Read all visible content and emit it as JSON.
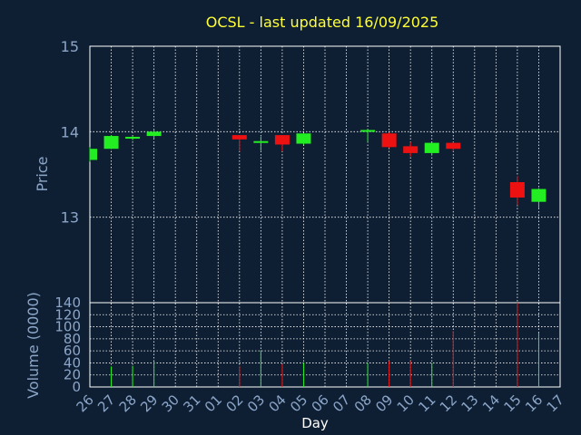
{
  "chart_data": {
    "type": "candlestick",
    "title": "OCSL - last updated 16/09/2025",
    "xlabel": "Day",
    "price_panel": {
      "ylabel": "Price",
      "ylim": [
        12,
        15
      ],
      "yticks": [
        "13",
        "14",
        "15"
      ]
    },
    "volume_panel": {
      "ylabel": "Volume (0000)",
      "ylim": [
        0,
        140
      ],
      "yticks": [
        "0",
        "20",
        "40",
        "60",
        "80",
        "100",
        "120",
        "140"
      ]
    },
    "categories": [
      "26",
      "27",
      "28",
      "29",
      "30",
      "31",
      "01",
      "02",
      "03",
      "04",
      "05",
      "06",
      "07",
      "08",
      "09",
      "10",
      "11",
      "12",
      "13",
      "14",
      "15",
      "16",
      "17"
    ],
    "candles": [
      {
        "x": "26",
        "open": 13.67,
        "close": 13.8,
        "high": 13.82,
        "low": 13.65,
        "volume": 0
      },
      {
        "x": "27",
        "open": 13.8,
        "close": 13.95,
        "high": 13.96,
        "low": 13.8,
        "volume": 34
      },
      {
        "x": "28",
        "open": 13.92,
        "close": 13.94,
        "high": 13.95,
        "low": 13.9,
        "volume": 35
      },
      {
        "x": "29",
        "open": 13.95,
        "close": 14.0,
        "high": 14.03,
        "low": 13.92,
        "volume": 42
      },
      {
        "x": "02",
        "open": 13.96,
        "close": 13.91,
        "high": 13.96,
        "low": 13.77,
        "volume": 34
      },
      {
        "x": "03",
        "open": 13.87,
        "close": 13.89,
        "high": 13.94,
        "low": 13.78,
        "volume": 61
      },
      {
        "x": "04",
        "open": 13.96,
        "close": 13.85,
        "high": 13.96,
        "low": 13.77,
        "volume": 38
      },
      {
        "x": "05",
        "open": 13.86,
        "close": 13.98,
        "high": 13.98,
        "low": 13.85,
        "volume": 40
      },
      {
        "x": "08",
        "open": 14.0,
        "close": 14.02,
        "high": 14.03,
        "low": 13.88,
        "volume": 40
      },
      {
        "x": "09",
        "open": 13.98,
        "close": 13.82,
        "high": 13.99,
        "low": 13.81,
        "volume": 43
      },
      {
        "x": "10",
        "open": 13.83,
        "close": 13.75,
        "high": 13.88,
        "low": 13.71,
        "volume": 43
      },
      {
        "x": "11",
        "open": 13.75,
        "close": 13.87,
        "high": 13.87,
        "low": 13.73,
        "volume": 40
      },
      {
        "x": "12",
        "open": 13.87,
        "close": 13.8,
        "high": 13.88,
        "low": 13.77,
        "volume": 93
      },
      {
        "x": "15",
        "open": 13.41,
        "close": 13.23,
        "high": 13.48,
        "low": 13.14,
        "volume": 140
      },
      {
        "x": "16",
        "open": 13.18,
        "close": 13.33,
        "high": 13.34,
        "low": 13.1,
        "volume": 90
      }
    ],
    "colors": {
      "up": "#22ee22",
      "down": "#ee1111",
      "background": "#0f1f33",
      "grid": "#ffffff",
      "text": "#8ba6c9",
      "title": "#ffff33"
    },
    "grid": true
  }
}
